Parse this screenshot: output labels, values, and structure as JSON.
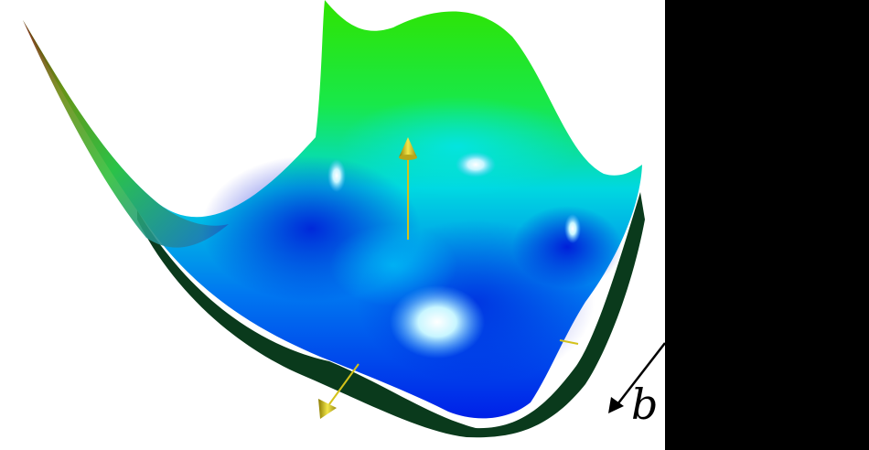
{
  "figure": {
    "axis_label_b": "b",
    "colors": {
      "background": "#ffffff",
      "panel": "#000000",
      "surface_high": "#22e600",
      "surface_mid": "#00d8ee",
      "surface_low": "#0010e6",
      "surface_edge": "#8a1a10",
      "shadow": "#0b3d1e",
      "axis_arrow": "#d4c21a"
    },
    "icons": [
      "up-arrow-cone-icon",
      "down-arrow-cone-icon",
      "axis-arrow-icon"
    ]
  }
}
